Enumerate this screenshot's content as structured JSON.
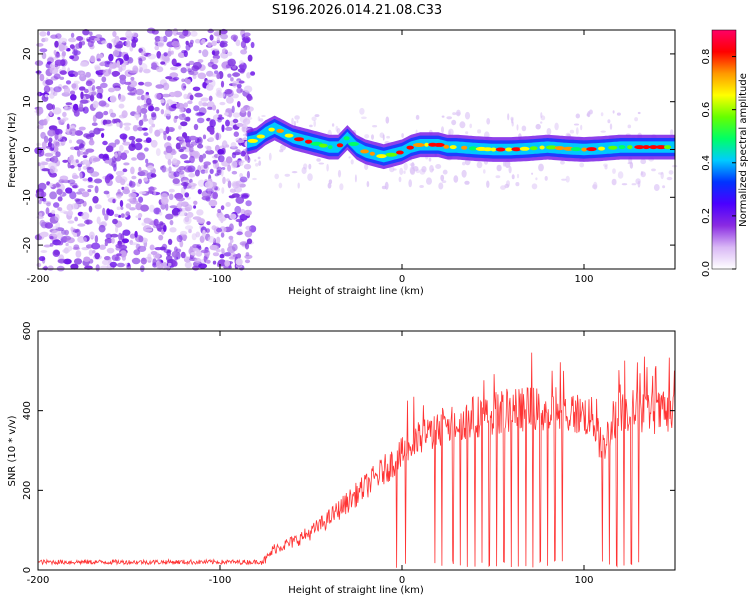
{
  "title": "S196.2026.014.21.08.C33",
  "chart_data": [
    {
      "type": "heatmap",
      "title": "S196.2026.014.21.08.C33",
      "xlabel": "Height of straight line (km)",
      "ylabel": "Frequency (Hz)",
      "xlim": [
        -200,
        150
      ],
      "ylim": [
        -25,
        25
      ],
      "xticks": [
        -200,
        -100,
        0,
        100
      ],
      "xtick_labels": [
        "-200",
        "-100",
        "0",
        "100"
      ],
      "yticks": [
        20,
        10,
        0,
        -10,
        -20
      ],
      "ytick_labels": [
        "20",
        "10",
        "0",
        "-10",
        "-20"
      ],
      "noise_region_end_km": -82,
      "ridge": {
        "x": [
          -85,
          -80,
          -75,
          -70,
          -65,
          -60,
          -55,
          -50,
          -45,
          -40,
          -35,
          -30,
          -25,
          -20,
          -15,
          -10,
          -5,
          0,
          5,
          10,
          15,
          20,
          25,
          30,
          40,
          50,
          60,
          70,
          80,
          90,
          100,
          110,
          120,
          130,
          140,
          150
        ],
        "y": [
          1.5,
          2.0,
          3.5,
          4.5,
          3.5,
          2.5,
          2.0,
          1.5,
          1.0,
          0.5,
          0.5,
          2.5,
          0.5,
          -0.5,
          -1.0,
          -1.5,
          -1.0,
          -0.5,
          0.5,
          1.0,
          1.0,
          1.0,
          0.5,
          0.5,
          0.2,
          0.0,
          0.0,
          0.2,
          0.5,
          0.2,
          0.0,
          0.2,
          0.5,
          0.5,
          0.5,
          0.5
        ]
      },
      "colorbar": {
        "label": "Normalized spectral amplitude",
        "range": [
          0.0,
          0.9
        ],
        "ticks": [
          0.0,
          0.2,
          0.4,
          0.6,
          0.8
        ],
        "tick_labels": [
          "0.0",
          "0.2",
          "0.4",
          "0.6",
          "0.8"
        ],
        "colors": [
          "#ffffff",
          "#d9b8f5",
          "#8a2be2",
          "#4b00ff",
          "#0033ff",
          "#00ccff",
          "#00ff66",
          "#66ff00",
          "#ffff00",
          "#ff9900",
          "#ff0000",
          "#ff0066"
        ]
      }
    },
    {
      "type": "line",
      "xlabel": "Height of straight line (km)",
      "ylabel": "SNR (10 * v/v)",
      "xlim": [
        -200,
        150
      ],
      "ylim": [
        0,
        600
      ],
      "xticks": [
        -200,
        -100,
        0,
        100
      ],
      "xtick_labels": [
        "-200",
        "-100",
        "0",
        "100"
      ],
      "yticks": [
        0,
        200,
        400,
        600
      ],
      "ytick_labels": [
        "0",
        "200",
        "400",
        "600"
      ],
      "color": "#ff3333",
      "envelope": {
        "x": [
          -200,
          -150,
          -100,
          -80,
          -75,
          -70,
          -60,
          -50,
          -40,
          -30,
          -20,
          -10,
          0,
          10,
          20,
          30,
          40,
          50,
          60,
          70,
          80,
          90,
          100,
          105,
          110,
          115,
          120,
          130,
          140,
          150
        ],
        "y": [
          20,
          20,
          20,
          20,
          25,
          55,
          70,
          95,
          130,
          170,
          210,
          250,
          290,
          330,
          360,
          375,
          385,
          395,
          400,
          405,
          400,
          395,
          390,
          380,
          300,
          370,
          400,
          400,
          395,
          390
        ]
      },
      "dropouts_x": [
        -3,
        2,
        18,
        22,
        28,
        32,
        36,
        40,
        44,
        48,
        52,
        56,
        60,
        64,
        68,
        72,
        76,
        80,
        84,
        88,
        110,
        114,
        118,
        122,
        126,
        130
      ]
    }
  ]
}
